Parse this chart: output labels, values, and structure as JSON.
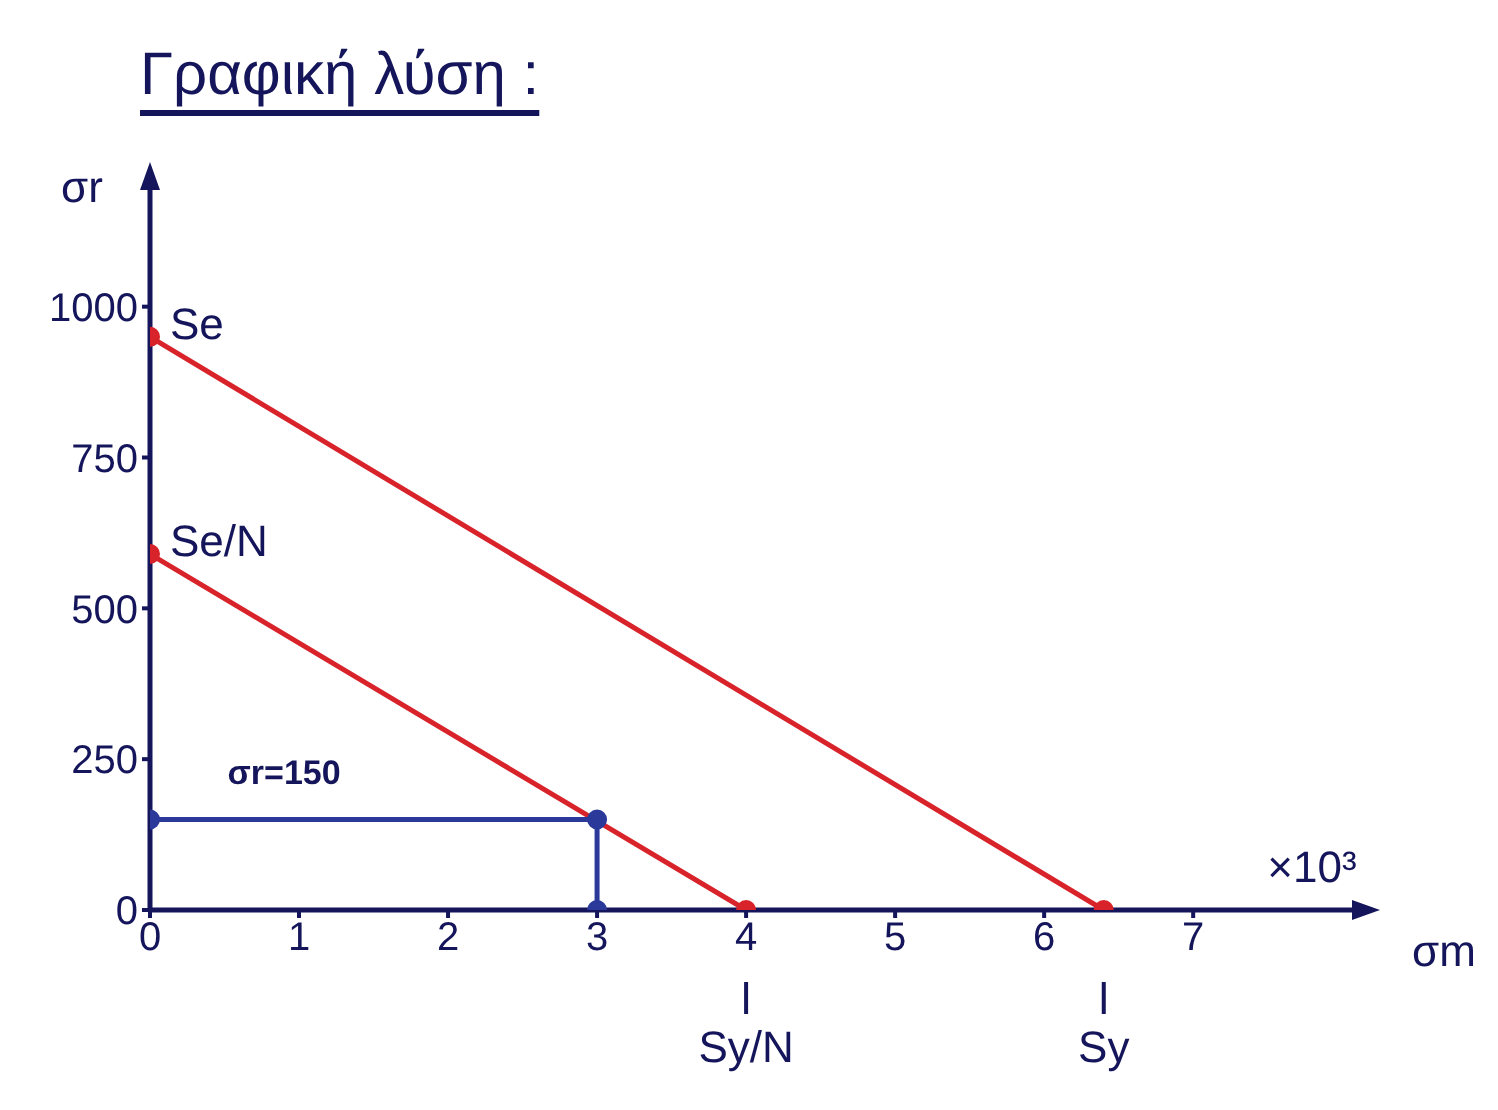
{
  "chart_data": {
    "type": "line",
    "title": "Γραφική λύση :",
    "xlabel": "σm",
    "ylabel": "σr",
    "xlim": [
      0,
      8.2
    ],
    "xticks": [
      0,
      1,
      2,
      3,
      4,
      5,
      6,
      7
    ],
    "ylim": [
      0,
      1200
    ],
    "yticks": [
      0,
      250,
      500,
      750,
      1000
    ],
    "grid": false,
    "legend": false,
    "marker": "circle",
    "line_style": "solid",
    "series": [
      {
        "color": "#d8232a",
        "x": [
          0,
          6.4
        ],
        "values": [
          950,
          0
        ]
      },
      {
        "color": "#d8232a",
        "x": [
          0,
          4
        ],
        "values": [
          590,
          0
        ]
      },
      {
        "color": "#2b3a9a",
        "x": [
          0,
          3,
          3
        ],
        "values": [
          150,
          150,
          0
        ]
      }
    ],
    "annotations": [
      "×10³",
      {
        "text": "Se",
        "x": 0,
        "y": 950
      },
      {
        "text": "Se/N",
        "x": 0,
        "y": 590
      },
      {
        "text": "Sy/N",
        "x": 4,
        "y": 0
      },
      {
        "text": "Sy",
        "x": 6.4,
        "y": 0
      },
      {
        "text": "σr=150",
        "x": 0.9,
        "y": 150
      }
    ]
  }
}
